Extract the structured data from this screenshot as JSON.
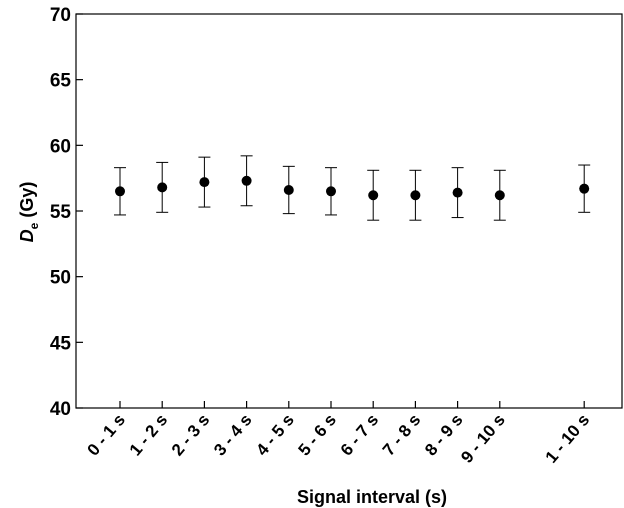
{
  "chart_data": {
    "type": "scatter",
    "error_bars": true,
    "categories": [
      "0 - 1 s",
      "1 - 2 s",
      "2 - 3 s",
      "3 - 4 s",
      "4 - 5 s",
      "5 - 6 s",
      "6 - 7 s",
      "7 - 8 s",
      "8 - 9 s",
      "9 - 10 s",
      "1 - 10 s"
    ],
    "category_positions": [
      1,
      2,
      3,
      4,
      5,
      6,
      7,
      8,
      9,
      10,
      12
    ],
    "values": [
      56.5,
      56.8,
      57.2,
      57.3,
      56.6,
      56.5,
      56.2,
      56.2,
      56.4,
      56.2,
      56.7
    ],
    "errors": [
      1.8,
      1.9,
      1.9,
      1.9,
      1.8,
      1.8,
      1.9,
      1.9,
      1.9,
      1.9,
      1.8
    ],
    "ylim": [
      40,
      70
    ],
    "yticks": [
      "40",
      "45",
      "50",
      "55",
      "60",
      "65",
      "70"
    ],
    "ylabel_main": "D",
    "ylabel_sub": "e",
    "ylabel_unit": " (Gy)",
    "xlabel": "Signal interval (s)",
    "marker_color": "#000000",
    "grid": false
  }
}
